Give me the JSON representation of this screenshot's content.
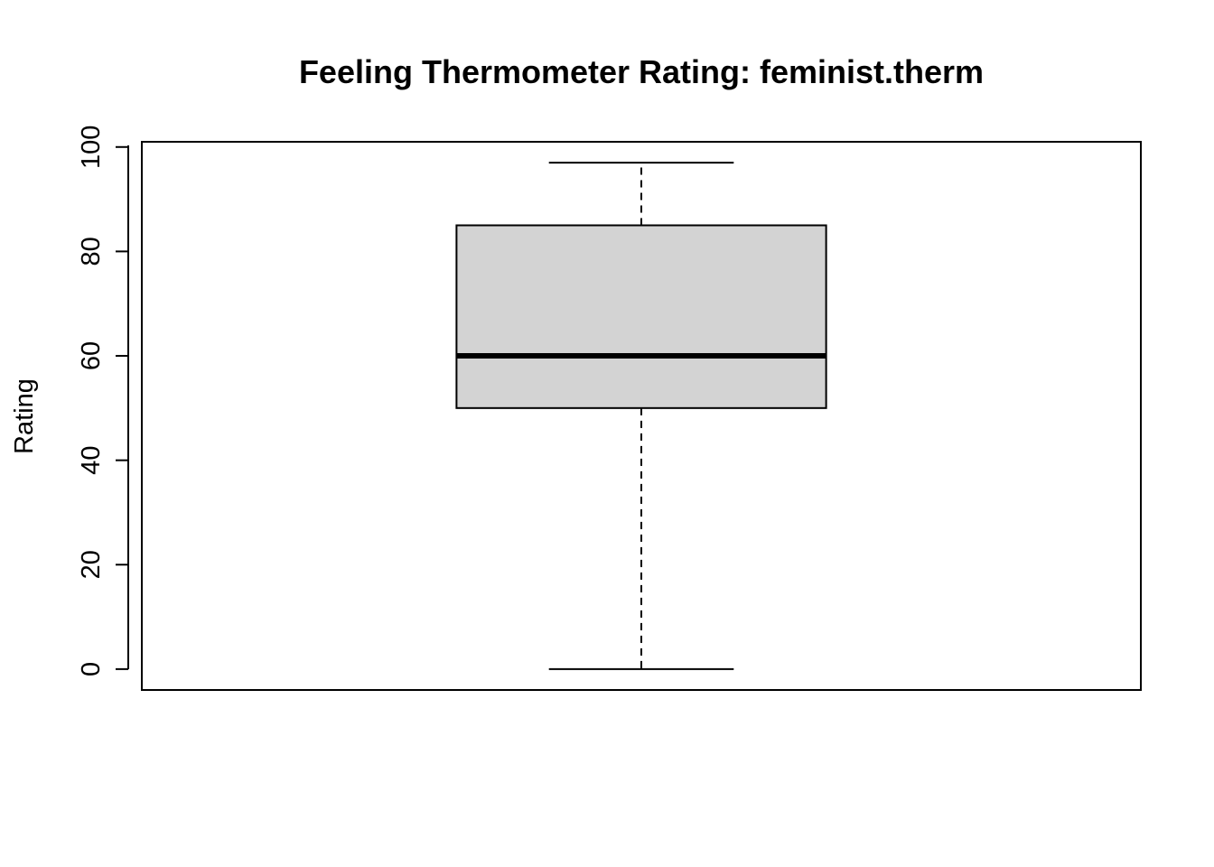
{
  "chart_data": {
    "type": "boxplot",
    "title": "Feeling Thermometer Rating: feminist.therm",
    "xlabel": "",
    "ylabel": "Rating",
    "ylim": [
      -4,
      101
    ],
    "yticks": [
      0,
      20,
      40,
      60,
      80,
      100
    ],
    "ytick_labels": [
      "0",
      "20",
      "40",
      "60",
      "80",
      "100"
    ],
    "boxes": [
      {
        "min": 0,
        "q1": 50,
        "median": 60,
        "q3": 85,
        "max": 97
      }
    ],
    "grid": false,
    "legend": "none",
    "colors": {
      "box_fill": "#d3d3d3",
      "stroke": "#000000",
      "background": "#ffffff"
    }
  }
}
